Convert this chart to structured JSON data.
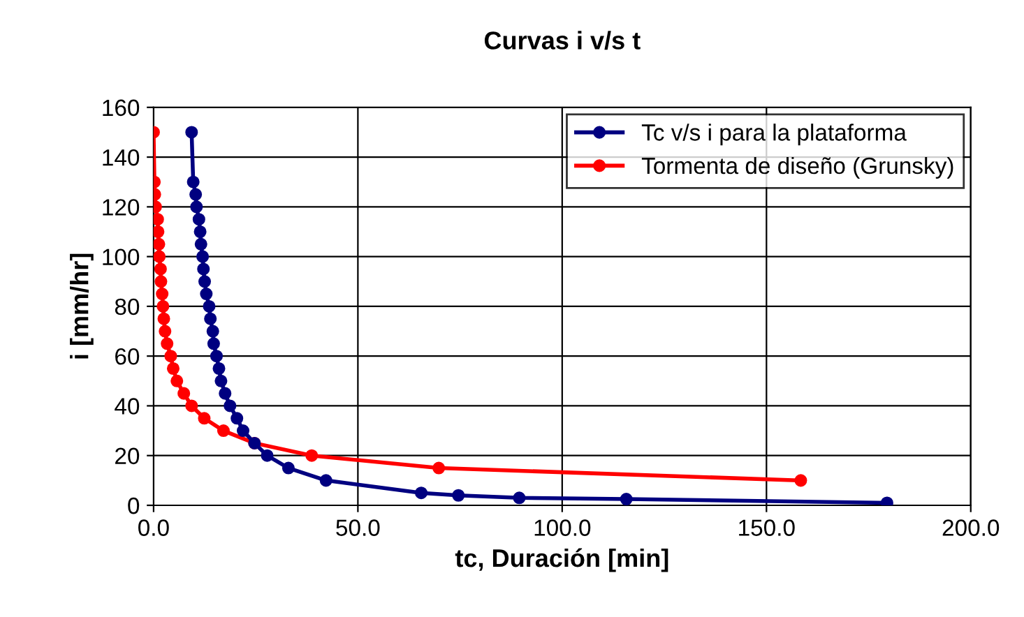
{
  "chart_data": {
    "type": "line",
    "title": "Curvas i v/s t",
    "xlabel": "tc, Duración [min]",
    "ylabel": "i [mm/hr]",
    "series": [
      {
        "name": "Tc v/s i para la plataforma",
        "color": "#000080",
        "x": [
          9.3,
          9.7,
          10.3,
          10.5,
          11.1,
          11.4,
          11.6,
          12.0,
          12.2,
          12.5,
          12.9,
          13.6,
          13.9,
          14.5,
          14.7,
          15.4,
          16.0,
          16.5,
          17.5,
          18.7,
          20.4,
          21.9,
          24.7,
          27.8,
          33.0,
          42.2,
          65.5,
          74.6,
          89.5,
          115.7,
          179.5
        ],
        "values": [
          150,
          130,
          125,
          120,
          115,
          110,
          105,
          100,
          95,
          90,
          85,
          80,
          75,
          70,
          65,
          60,
          55,
          50,
          45,
          40,
          35,
          30,
          25,
          20,
          15,
          10,
          5,
          4,
          3,
          2.5,
          1
        ]
      },
      {
        "name": "Tormenta de diseño (Grunsky)",
        "color": "#ff0000",
        "x": [
          0,
          0.2,
          0.3,
          0.5,
          1.0,
          1.1,
          1.3,
          1.4,
          1.7,
          1.8,
          2.1,
          2.3,
          2.5,
          2.8,
          3.3,
          4.2,
          4.8,
          5.7,
          7.4,
          9.3,
          12.4,
          17.1,
          24.7,
          38.7,
          69.8,
          158.4
        ],
        "values": [
          150,
          130,
          125,
          120,
          115,
          110,
          105,
          100,
          95,
          90,
          85,
          80,
          75,
          70,
          65,
          60,
          55,
          50,
          45,
          40,
          35,
          30,
          25,
          20,
          15,
          10
        ]
      }
    ],
    "xlim": [
      0,
      200
    ],
    "xticks": [
      {
        "value": 0,
        "label": "0.0"
      },
      {
        "value": 50,
        "label": "50.0"
      },
      {
        "value": 100,
        "label": "100.0"
      },
      {
        "value": 150,
        "label": "150.0"
      },
      {
        "value": 200,
        "label": "200.0"
      }
    ],
    "ylim": [
      0,
      160
    ],
    "yticks": [
      0,
      20,
      40,
      60,
      80,
      100,
      120,
      140,
      160
    ],
    "grid": true,
    "legend": "top right",
    "marker": "circle",
    "line_style": "solid"
  }
}
